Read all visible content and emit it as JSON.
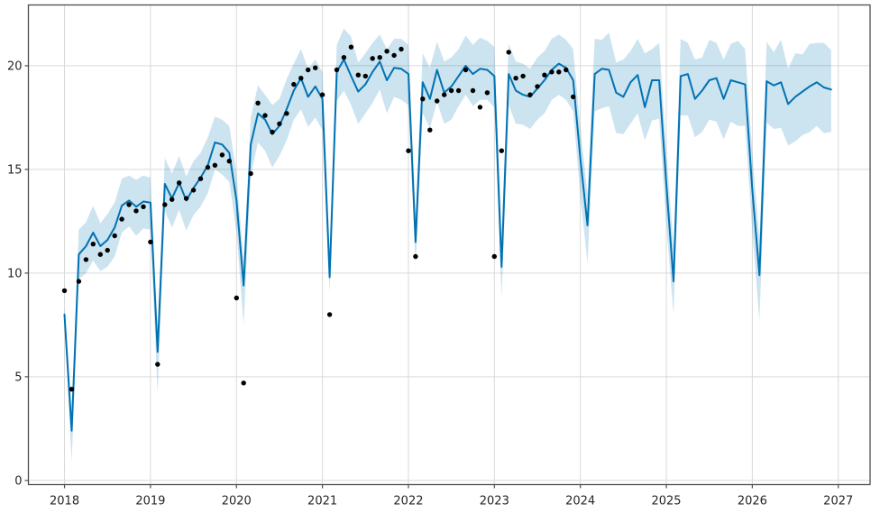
{
  "chart": {
    "title": "",
    "colors": {
      "forecast_line": "#0072B2",
      "uncertainty_band": "#0072B2",
      "uncertainty_band_opacity": 0.2,
      "observed_dots": "#000000",
      "grid_line": "#d9d9d9",
      "spine": "#4d4d4d",
      "tick_label": "#262626",
      "background": "#ffffff"
    }
  },
  "chart_data": {
    "type": "line",
    "title": "",
    "xlabel": "",
    "ylabel": "",
    "legend": "none",
    "grid": true,
    "x_frequency": "monthly",
    "x_start_month": "2018-01",
    "x_tick_labels": [
      "2018",
      "2019",
      "2020",
      "2021",
      "2022",
      "2023",
      "2024",
      "2025",
      "2026",
      "2027"
    ],
    "x_tick_years": [
      2018,
      2019,
      2020,
      2021,
      2022,
      2023,
      2024,
      2025,
      2026,
      2027
    ],
    "x_range_years": [
      2017.58,
      2027.37
    ],
    "y_tick_labels": [
      "0",
      "5",
      "10",
      "15",
      "20"
    ],
    "y_tick_values": [
      0,
      5,
      10,
      15,
      20
    ],
    "ylim": [
      -0.2,
      22.93
    ],
    "series": [
      {
        "name": "uncertainty_band",
        "type": "area",
        "upper": [
          8.4,
          3.4,
          12.1,
          12.45,
          13.25,
          12.4,
          12.85,
          13.4,
          14.55,
          14.7,
          14.5,
          14.7,
          14.6,
          7.3,
          15.55,
          14.8,
          15.65,
          14.65,
          15.4,
          15.8,
          16.55,
          17.55,
          17.4,
          17.1,
          14.8,
          10.6,
          17.5,
          19.05,
          18.6,
          18.1,
          18.4,
          19.35,
          20.1,
          20.8,
          19.85,
          20.3,
          19.7,
          11.2,
          21.0,
          21.8,
          21.4,
          20.15,
          20.6,
          21.1,
          21.5,
          20.8,
          21.3,
          21.3,
          21.0,
          12.8,
          20.6,
          19.9,
          21.15,
          20.2,
          20.4,
          20.8,
          21.45,
          21.0,
          21.35,
          21.2,
          20.9,
          11.8,
          21.05,
          20.2,
          20.1,
          19.85,
          20.4,
          20.7,
          21.3,
          21.5,
          21.25,
          20.8,
          17.0,
          13.8,
          21.3,
          21.25,
          21.6,
          20.15,
          20.3,
          20.7,
          21.3,
          20.6,
          20.8,
          21.1,
          15.9,
          11.3,
          21.3,
          21.1,
          20.3,
          20.4,
          21.25,
          21.1,
          20.3,
          21.05,
          21.2,
          20.8,
          15.8,
          11.6,
          21.15,
          20.65,
          21.25,
          19.85,
          20.6,
          20.55,
          21.05,
          21.1,
          21.1,
          20.75
        ],
        "lower": [
          7.6,
          0.9,
          9.7,
          10.0,
          10.6,
          10.1,
          10.3,
          10.8,
          11.95,
          12.25,
          11.8,
          12.15,
          12.1,
          4.2,
          13.0,
          12.2,
          13.05,
          12.05,
          12.8,
          13.2,
          13.85,
          15.0,
          14.75,
          14.4,
          12.0,
          7.5,
          14.7,
          16.3,
          15.9,
          15.1,
          15.65,
          16.4,
          17.4,
          17.9,
          17.05,
          17.5,
          16.9,
          9.1,
          18.3,
          18.8,
          18.1,
          17.2,
          17.7,
          18.2,
          18.85,
          17.7,
          18.5,
          18.35,
          18.1,
          10.3,
          17.7,
          17.0,
          18.25,
          17.2,
          17.4,
          18.05,
          18.6,
          18.05,
          18.35,
          18.35,
          18.0,
          8.8,
          18.1,
          17.2,
          17.15,
          16.95,
          17.4,
          17.7,
          18.35,
          18.6,
          18.35,
          17.8,
          13.7,
          10.5,
          17.8,
          17.95,
          18.05,
          16.75,
          16.7,
          17.2,
          17.7,
          16.4,
          17.35,
          17.45,
          12.4,
          8.0,
          17.6,
          17.6,
          16.55,
          16.8,
          17.4,
          17.3,
          16.45,
          17.3,
          17.1,
          17.1,
          12.0,
          7.7,
          17.25,
          16.95,
          17.0,
          16.15,
          16.35,
          16.65,
          16.8,
          17.1,
          16.75,
          16.8
        ]
      },
      {
        "name": "forecast",
        "type": "line",
        "values": [
          8.0,
          2.4,
          10.9,
          11.3,
          11.95,
          11.3,
          11.6,
          12.2,
          13.25,
          13.5,
          13.2,
          13.45,
          13.4,
          6.2,
          14.3,
          13.6,
          14.35,
          13.5,
          14.1,
          14.6,
          15.2,
          16.3,
          16.2,
          15.8,
          13.5,
          9.4,
          16.2,
          17.7,
          17.4,
          16.7,
          17.1,
          17.9,
          18.8,
          19.4,
          18.5,
          19.0,
          18.4,
          9.8,
          19.7,
          20.3,
          19.5,
          18.75,
          19.1,
          19.7,
          20.2,
          19.3,
          19.9,
          19.85,
          19.6,
          11.5,
          19.2,
          18.4,
          19.8,
          18.7,
          19.0,
          19.5,
          20.0,
          19.6,
          19.85,
          19.8,
          19.5,
          10.3,
          19.6,
          18.8,
          18.6,
          18.5,
          18.9,
          19.3,
          19.8,
          20.1,
          19.9,
          19.3,
          15.5,
          12.3,
          19.6,
          19.85,
          19.8,
          18.7,
          18.5,
          19.2,
          19.55,
          18.0,
          19.3,
          19.3,
          14.3,
          9.6,
          19.5,
          19.6,
          18.4,
          18.8,
          19.3,
          19.4,
          18.4,
          19.3,
          19.2,
          19.1,
          14.0,
          9.9,
          19.25,
          19.05,
          19.2,
          18.15,
          18.5,
          18.75,
          19.0,
          19.2,
          18.95,
          18.85
        ]
      },
      {
        "name": "observed",
        "type": "scatter",
        "values": [
          9.15,
          4.4,
          9.6,
          10.65,
          11.4,
          10.9,
          11.1,
          11.8,
          12.6,
          13.3,
          13.0,
          13.2,
          11.5,
          5.6,
          13.3,
          13.55,
          14.35,
          13.6,
          14.0,
          14.55,
          15.1,
          15.2,
          15.7,
          15.4,
          8.8,
          4.7,
          14.8,
          18.2,
          17.6,
          16.8,
          17.2,
          17.7,
          19.1,
          19.4,
          19.8,
          19.9,
          18.6,
          8.0,
          19.8,
          20.4,
          20.9,
          19.55,
          19.5,
          20.35,
          20.4,
          20.7,
          20.5,
          20.8,
          15.9,
          10.8,
          18.4,
          16.9,
          18.3,
          18.6,
          18.8,
          18.8,
          19.8,
          18.8,
          18.0,
          18.7,
          10.8,
          15.9,
          20.65,
          19.4,
          19.5,
          18.6,
          19.0,
          19.55,
          19.7,
          19.7,
          19.8,
          18.5
        ]
      }
    ]
  }
}
